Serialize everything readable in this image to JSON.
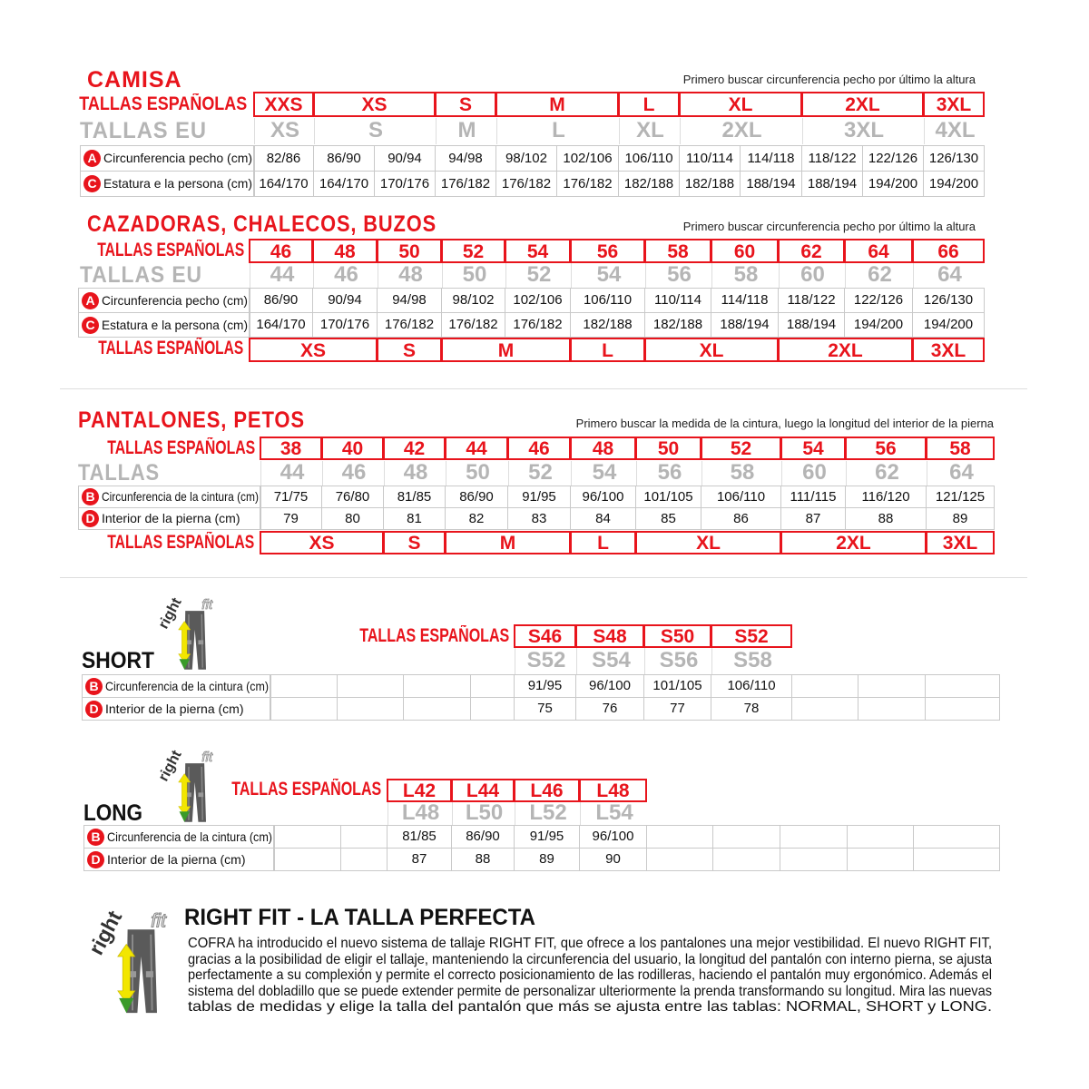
{
  "camisa": {
    "title": "CAMISA",
    "note": "Primero buscar circunferencia pecho por último la altura",
    "es_label": "TALLAS ESPAÑOLAS",
    "eu_label": "TALLAS EU",
    "es_sizes": [
      "XXS",
      "XS",
      "S",
      "M",
      "L",
      "XL",
      "2XL",
      "3XL"
    ],
    "eu_sizes": [
      "XS",
      "S",
      "M",
      "L",
      "XL",
      "2XL",
      "3XL",
      "4XL"
    ],
    "rows": [
      {
        "letter": "A",
        "label": "Circunferencia pecho (cm)",
        "values": [
          "82/86",
          "86/90",
          "90/94",
          "94/98",
          "98/102",
          "102/106",
          "106/110",
          "110/114",
          "114/118",
          "118/122",
          "122/126",
          "126/130"
        ]
      },
      {
        "letter": "C",
        "label": "Estatura e la persona (cm)",
        "values": [
          "164/170",
          "164/170",
          "170/176",
          "176/182",
          "176/182",
          "176/182",
          "182/188",
          "182/188",
          "188/194",
          "188/194",
          "194/200",
          "194/200"
        ]
      }
    ]
  },
  "cazadoras": {
    "title": "CAZADORAS, CHALECOS, BUZOS",
    "note": "Primero buscar circunferencia pecho por último la altura",
    "es_label": "TALLAS ESPAÑOLAS",
    "eu_label": "TALLAS EU",
    "es_sizes": [
      "46",
      "48",
      "50",
      "52",
      "54",
      "56",
      "58",
      "60",
      "62",
      "64",
      "66"
    ],
    "eu_sizes": [
      "44",
      "46",
      "48",
      "50",
      "52",
      "54",
      "56",
      "58",
      "60",
      "62",
      "64"
    ],
    "rows": [
      {
        "letter": "A",
        "label": "Circunferencia pecho (cm)",
        "values": [
          "86/90",
          "90/94",
          "94/98",
          "98/102",
          "102/106",
          "106/110",
          "110/114",
          "114/118",
          "118/122",
          "122/126",
          "126/130"
        ]
      },
      {
        "letter": "C",
        "label": "Estatura e la persona (cm)",
        "values": [
          "164/170",
          "170/176",
          "176/182",
          "176/182",
          "176/182",
          "182/188",
          "182/188",
          "188/194",
          "188/194",
          "194/200",
          "194/200"
        ]
      }
    ],
    "bottom_label": "TALLAS ESPAÑOLAS",
    "letter_sizes": [
      "XS",
      "S",
      "M",
      "L",
      "XL",
      "2XL",
      "3XL"
    ]
  },
  "pantalones": {
    "title": "PANTALONES, PETOS",
    "note": "Primero buscar la medida de la cintura, luego la longitud del interior de la pierna",
    "es_label": "TALLAS ESPAÑOLAS",
    "eu_label": "TALLAS",
    "es_sizes": [
      "38",
      "40",
      "42",
      "44",
      "46",
      "48",
      "50",
      "52",
      "54",
      "56",
      "58"
    ],
    "eu_sizes": [
      "44",
      "46",
      "48",
      "50",
      "52",
      "54",
      "56",
      "58",
      "60",
      "62",
      "64"
    ],
    "rows": [
      {
        "letter": "B",
        "label": "Circunferencia de la cintura (cm)",
        "values": [
          "71/75",
          "76/80",
          "81/85",
          "86/90",
          "91/95",
          "96/100",
          "101/105",
          "106/110",
          "111/115",
          "116/120",
          "121/125"
        ]
      },
      {
        "letter": "D",
        "label": "Interior de la pierna (cm)",
        "values": [
          "79",
          "80",
          "81",
          "82",
          "83",
          "84",
          "85",
          "86",
          "87",
          "88",
          "89"
        ]
      }
    ],
    "bottom_label": "TALLAS ESPAÑOLAS",
    "letter_sizes": [
      "XS",
      "S",
      "M",
      "L",
      "XL",
      "2XL",
      "3XL"
    ]
  },
  "short": {
    "title": "SHORT",
    "es_label": "TALLAS ESPAÑOLAS",
    "es_sizes": [
      "S46",
      "S48",
      "S50",
      "S52"
    ],
    "eu_sizes": [
      "S52",
      "S54",
      "S56",
      "S58"
    ],
    "rows": [
      {
        "letter": "B",
        "label": "Circunferencia de la cintura (cm)",
        "values": [
          "91/95",
          "96/100",
          "101/105",
          "106/110"
        ]
      },
      {
        "letter": "D",
        "label": "Interior de la pierna (cm)",
        "values": [
          "75",
          "76",
          "77",
          "78"
        ]
      }
    ]
  },
  "long": {
    "title": "LONG",
    "es_label": "TALLAS ESPAÑOLAS",
    "es_sizes": [
      "L42",
      "L44",
      "L46",
      "L48"
    ],
    "eu_sizes": [
      "L48",
      "L50",
      "L52",
      "L54"
    ],
    "rows": [
      {
        "letter": "B",
        "label": "Circunferencia de la cintura (cm)",
        "values": [
          "81/85",
          "86/90",
          "91/95",
          "96/100"
        ]
      },
      {
        "letter": "D",
        "label": "Interior de la pierna (cm)",
        "values": [
          "87",
          "88",
          "89",
          "90"
        ]
      }
    ]
  },
  "rightfit": {
    "logo_text": [
      "right",
      "fit"
    ],
    "title": "RIGHT FIT - LA TALLA PERFECTA",
    "lines": [
      "COFRA ha introducido el nuevo sistema de tallaje RIGHT FIT, que ofrece a los pantalones una mejor vestibilidad. El nuevo RIGHT FIT,",
      "gracias a la posibilidad de eligir el tallaje, manteniendo la circunferencia del usuario, la longitud del pantalón con interno pierna, se ajusta",
      "perfectamente a su complexión y permite el correcto posicionamiento de las rodilleras, haciendo el pantalón muy ergonómico. Además el",
      "sistema del dobladillo que se puede extender permite de personalizar ulteriormente la prenda transformando su longitud. Mira las nuevas",
      "tablas de medidas y elige la talla del pantalón que más se ajusta entre las tablas: NORMAL, SHORT y LONG."
    ]
  },
  "colors": {
    "accent_red": "#e8141c",
    "eu_grey": "#b5b5b5",
    "border_grey": "#c9c9c9",
    "arrow_yellow": "#f2e600",
    "arrow_green": "#3a9a2a"
  }
}
